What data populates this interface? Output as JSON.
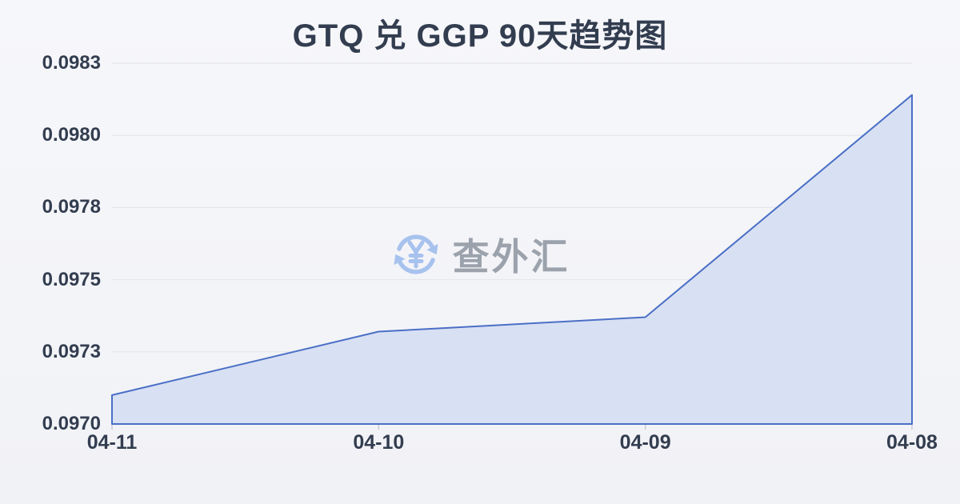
{
  "page": {
    "background_top": "#f6f7fa",
    "background_bottom": "#f1f2f6",
    "text_color": "#333d50"
  },
  "watermark": {
    "text": "查外汇",
    "icon": "currency-exchange-icon",
    "icon_color": "#a8c2ee",
    "text_color": "#9ba2ac"
  },
  "chart_data": {
    "type": "area",
    "title": "GTQ 兑 GGP 90天趋势图",
    "categories": [
      "04-11",
      "04-10",
      "04-09",
      "04-08"
    ],
    "values": [
      0.0971,
      0.09732,
      0.09737,
      0.09814
    ],
    "y_ticks": [
      "0.0970",
      "0.0973",
      "0.0975",
      "0.0978",
      "0.0980",
      "0.0983"
    ],
    "ylim": [
      0.097,
      0.09825
    ],
    "xlabel": "",
    "ylabel": "",
    "grid": true,
    "legend_position": "none",
    "line_color": "#4a6fc6",
    "fill_color": "#d8e0f3",
    "grid_color": "#e2e4e9",
    "tick_color": "#c9cdd5"
  }
}
